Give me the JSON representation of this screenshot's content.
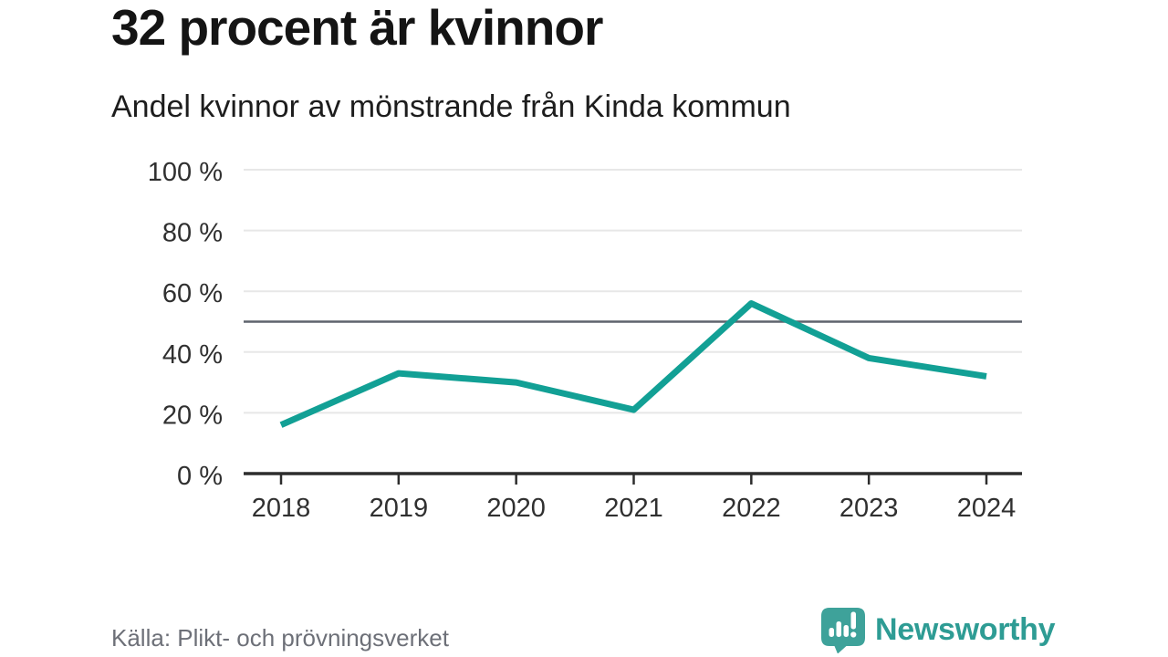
{
  "chart_data": {
    "type": "line",
    "title": "32 procent är kvinnor",
    "subtitle": "Andel kvinnor av mönstrande från Kinda kommun",
    "categories": [
      "2018",
      "2019",
      "2020",
      "2021",
      "2022",
      "2023",
      "2024"
    ],
    "series": [
      {
        "name": "Andel kvinnor av mönstrande",
        "values": [
          16,
          33,
          30,
          21,
          56,
          38,
          32
        ]
      }
    ],
    "unit": "%",
    "xlabel": "",
    "ylabel": "",
    "ylim": [
      0,
      100
    ],
    "yticks": [
      0,
      20,
      40,
      60,
      80,
      100
    ],
    "ytick_suffix": " %",
    "reference_line": 50,
    "grid": true,
    "legend": "none",
    "line_color": "#12a095",
    "reference_line_color": "#5f646d",
    "grid_color": "#e7e7e7",
    "axis_color": "#2d2d2d",
    "tick_label_color": "#303030"
  },
  "footer": {
    "source": "Källa: Plikt- och prövningsverket",
    "brand": "Newsworthy",
    "brand_color": "#2e9c94",
    "logo_color": "#3ea29a"
  }
}
